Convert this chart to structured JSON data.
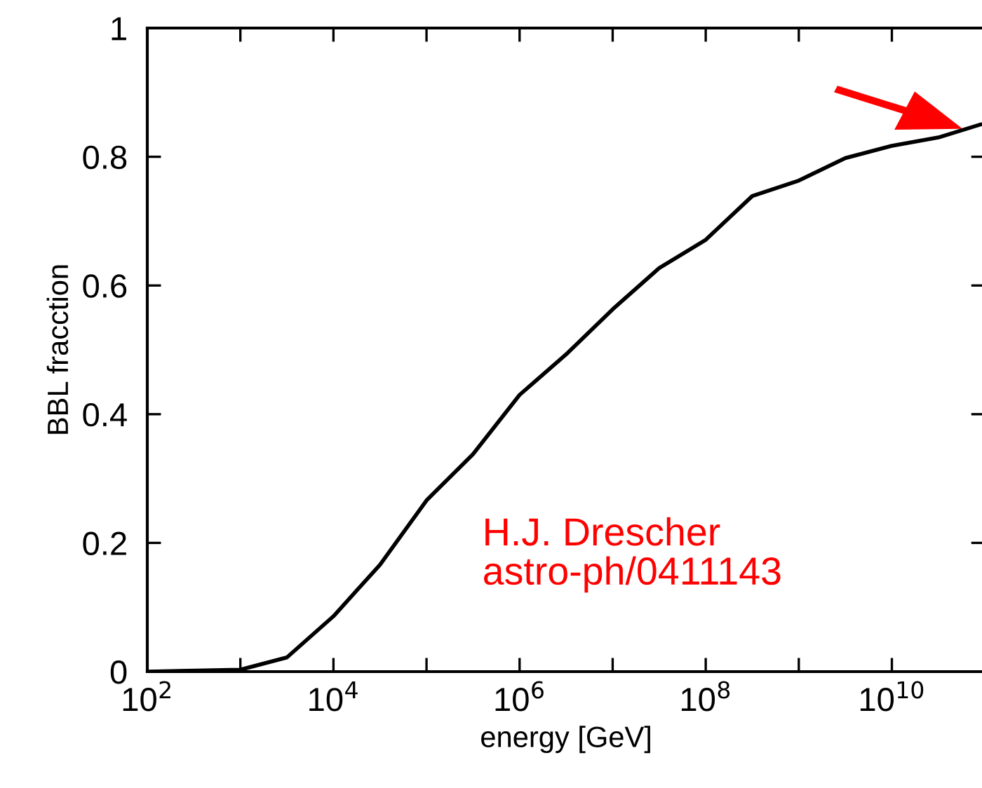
{
  "chart_data": {
    "type": "line",
    "xlabel": "energy [GeV]",
    "ylabel": "BBL fracction",
    "log": "x",
    "x": [
      100,
      1000,
      3162,
      10000,
      31623,
      100000,
      316228,
      1000000,
      3162278,
      10000000,
      31622777,
      100000000,
      316227766,
      1000000000,
      3162277660,
      10000000000,
      31622776602,
      89125093813
    ],
    "series": [
      {
        "color": "#000000",
        "values": [
          0,
          0.003,
          0.022,
          0.086,
          0.166,
          0.266,
          0.338,
          0.43,
          0.493,
          0.563,
          0.627,
          0.671,
          0.739,
          0.763,
          0.798,
          0.817,
          0.83,
          0.85
        ]
      }
    ],
    "xlim": [
      100,
      100000000000
    ],
    "ylim": [
      0,
      1
    ],
    "xticks": [
      {
        "value": 100,
        "label": "10$^{2}$"
      },
      {
        "value": 1000,
        "label": null
      },
      {
        "value": 10000,
        "label": "10$^{4}$"
      },
      {
        "value": 100000,
        "label": null
      },
      {
        "value": 1000000,
        "label": "10$^{6}$"
      },
      {
        "value": 10000000,
        "label": null
      },
      {
        "value": 100000000,
        "label": "10$^{8}$"
      },
      {
        "value": 1000000000,
        "label": null
      },
      {
        "value": 10000000000,
        "label": "10$^{10}$"
      }
    ],
    "yticks": [
      0,
      0.2,
      0.4,
      0.6,
      0.8,
      1
    ],
    "annotations": [
      "H.J. Drescher\nastro-ph/0411143"
    ],
    "grid": false,
    "legend": false,
    "marker": "none",
    "line_style": "solid"
  }
}
